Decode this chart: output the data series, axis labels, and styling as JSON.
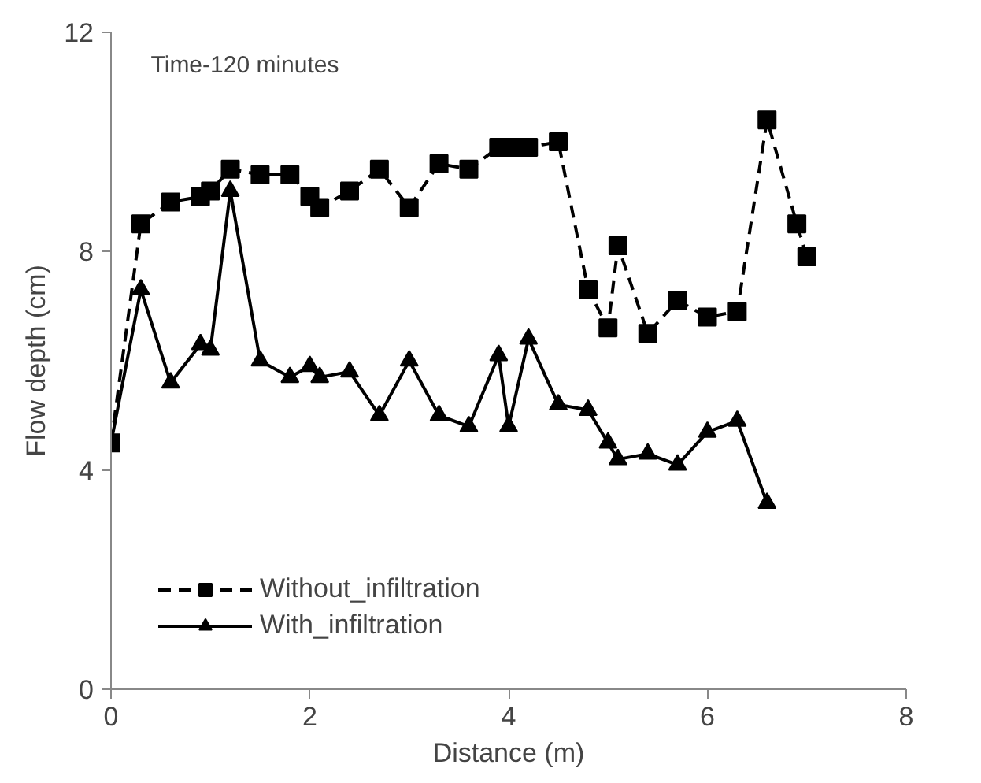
{
  "chart_data": {
    "type": "line",
    "xlabel": "Distance (m)",
    "ylabel": "Flow depth (cm)",
    "annotations": [
      "Time-120 minutes"
    ],
    "xlim": [
      0,
      8
    ],
    "xticks": [
      0,
      2,
      4,
      6,
      8
    ],
    "ylim": [
      0,
      12
    ],
    "yticks": [
      0,
      4,
      8,
      12
    ],
    "grid": false,
    "legend": "bottom left",
    "series": [
      {
        "name": "Without_infiltration",
        "color": "#000000",
        "marker": "square",
        "line_style": "dashed",
        "x": [
          0,
          0.3,
          0.6,
          0.9,
          1.0,
          1.2,
          1.5,
          1.8,
          2.0,
          2.1,
          2.4,
          2.7,
          3.0,
          3.3,
          3.6,
          3.9,
          4.05,
          4.2,
          4.5,
          4.8,
          5.0,
          5.1,
          5.4,
          5.7,
          6.0,
          6.3,
          6.6,
          6.9,
          7.0
        ],
        "values": [
          4.5,
          8.5,
          8.9,
          9.0,
          9.1,
          9.5,
          9.4,
          9.4,
          9.0,
          8.8,
          9.1,
          9.5,
          8.8,
          9.6,
          9.5,
          9.9,
          9.9,
          9.9,
          10.0,
          7.3,
          6.6,
          8.1,
          6.5,
          7.1,
          6.8,
          6.9,
          10.4,
          8.5,
          7.9
        ]
      },
      {
        "name": "With_infiltration",
        "color": "#000000",
        "marker": "triangle",
        "line_style": "solid",
        "x": [
          0,
          0.3,
          0.6,
          0.9,
          1.0,
          1.2,
          1.5,
          1.8,
          2.0,
          2.1,
          2.4,
          2.7,
          3.0,
          3.3,
          3.6,
          3.9,
          4.0,
          4.2,
          4.5,
          4.8,
          5.0,
          5.1,
          5.4,
          5.7,
          6.0,
          6.3,
          6.6
        ],
        "values": [
          4.5,
          7.3,
          5.6,
          6.3,
          6.2,
          9.1,
          6.0,
          5.7,
          5.9,
          5.7,
          5.8,
          5.0,
          6.0,
          5.0,
          4.8,
          6.1,
          4.8,
          6.4,
          5.2,
          5.1,
          4.5,
          4.2,
          4.3,
          4.1,
          4.7,
          4.9,
          3.4
        ]
      }
    ]
  }
}
